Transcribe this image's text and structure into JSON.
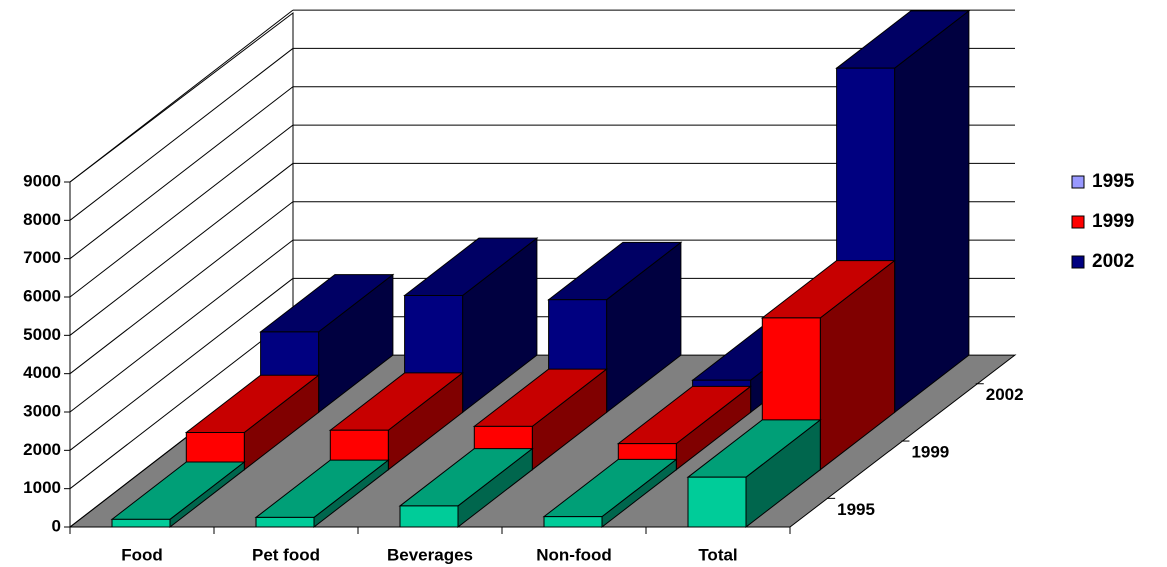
{
  "chart_data": {
    "type": "bar3d",
    "categories": [
      "Food",
      "Pet food",
      "Beverages",
      "Non-food",
      "Total"
    ],
    "series": [
      {
        "name": "1995",
        "color": "#9999ff",
        "bar_color": "#00cc99",
        "values": [
          200,
          250,
          550,
          270,
          1300
        ]
      },
      {
        "name": "1999",
        "color": "#ff0000",
        "bar_color": "#ff0000",
        "values": [
          970,
          1030,
          1130,
          680,
          3960
        ]
      },
      {
        "name": "2002",
        "color": "#000080",
        "bar_color": "#000080",
        "values": [
          2100,
          3050,
          2940,
          840,
          8980
        ]
      }
    ],
    "depth_labels": [
      "1995",
      "1999",
      "2002"
    ],
    "ylim": [
      0,
      9000
    ],
    "yticks": [
      0,
      1000,
      2000,
      3000,
      4000,
      5000,
      6000,
      7000,
      8000,
      9000
    ],
    "grid": true,
    "legend": "right"
  }
}
